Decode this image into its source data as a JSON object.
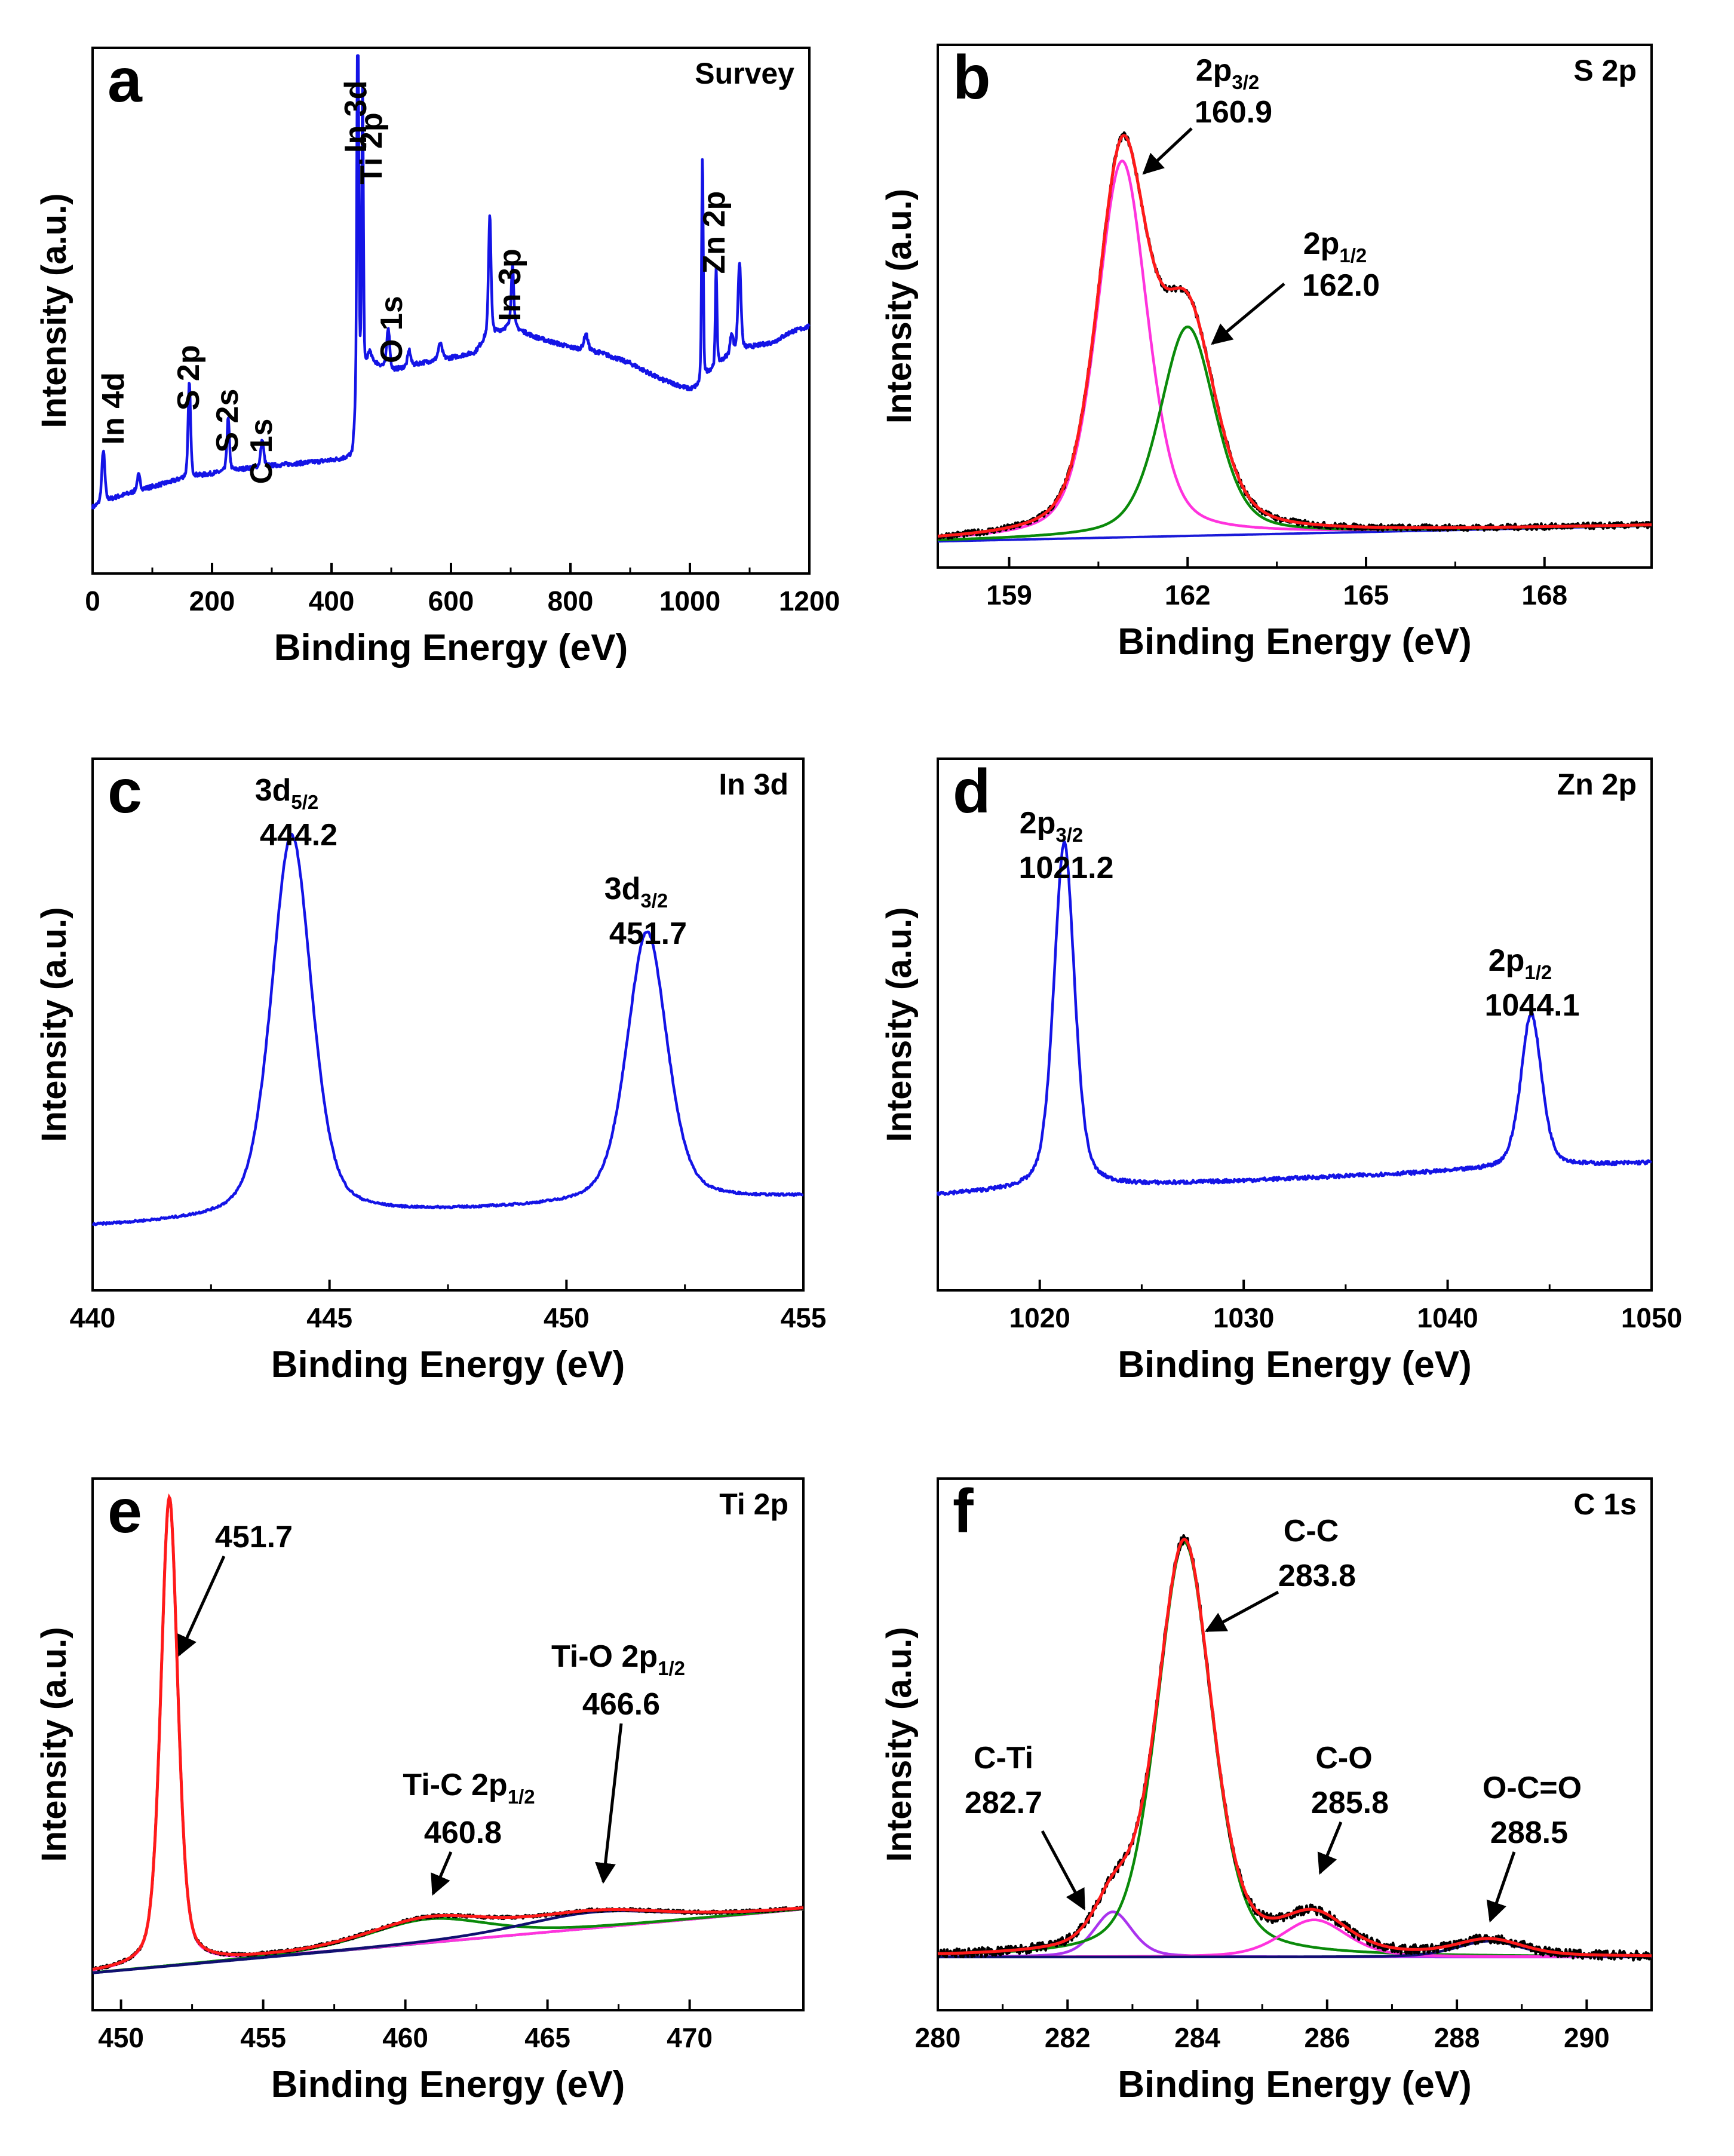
{
  "colors": {
    "measured_blue": "#1414e6",
    "raw": "#000000",
    "envelope": "#ff1a1a",
    "green": "#0a8a0a",
    "magenta": "#ff33dd",
    "violet": "#aa33ee",
    "navy": "#101070",
    "baseline_blue": "#1a1ad8"
  },
  "chart_data": [
    {
      "id": "a",
      "letter": "a",
      "type": "line",
      "title": "Survey",
      "xlabel": "Binding Energy (eV)",
      "ylabel": "Intensity (a.u.)",
      "xlim": [
        0,
        1200
      ],
      "ylim": [
        0,
        1
      ],
      "xticks": [
        0,
        200,
        400,
        600,
        800,
        1000,
        1200
      ],
      "series": [
        {
          "name": "Survey",
          "color": "measured_blue",
          "background": [
            [
              0,
              0.125
            ],
            [
              40,
              0.145
            ],
            [
              100,
              0.165
            ],
            [
              150,
              0.18
            ],
            [
              200,
              0.19
            ],
            [
              260,
              0.2
            ],
            [
              300,
              0.205
            ],
            [
              350,
              0.21
            ],
            [
              400,
              0.215
            ],
            [
              435,
              0.22
            ],
            [
              445,
              0.35
            ],
            [
              455,
              0.37
            ],
            [
              470,
              0.4
            ],
            [
              500,
              0.385
            ],
            [
              550,
              0.4
            ],
            [
              600,
              0.41
            ],
            [
              640,
              0.42
            ],
            [
              660,
              0.45
            ],
            [
              700,
              0.47
            ],
            [
              740,
              0.45
            ],
            [
              800,
              0.43
            ],
            [
              850,
              0.42
            ],
            [
              900,
              0.4
            ],
            [
              950,
              0.37
            ],
            [
              1000,
              0.35
            ],
            [
              1015,
              0.355
            ],
            [
              1030,
              0.38
            ],
            [
              1060,
              0.41
            ],
            [
              1100,
              0.43
            ],
            [
              1140,
              0.44
            ],
            [
              1170,
              0.46
            ],
            [
              1200,
              0.47
            ]
          ],
          "peaks": [
            [
              18,
              0.1,
              3
            ],
            [
              77,
              0.03,
              3
            ],
            [
              162,
              0.18,
              2.5
            ],
            [
              227,
              0.1,
              2.5
            ],
            [
              284,
              0.05,
              3
            ],
            [
              444,
              0.95,
              1.6
            ],
            [
              452,
              0.55,
              1.6
            ],
            [
              463,
              0.03,
              4
            ],
            [
              495,
              0.08,
              3
            ],
            [
              530,
              0.03,
              3
            ],
            [
              582,
              0.03,
              4
            ],
            [
              665,
              0.23,
              2.5
            ],
            [
              703,
              0.12,
              2.5
            ],
            [
              826,
              0.03,
              4
            ],
            [
              1021,
              0.43,
              1.6
            ],
            [
              1044,
              0.19,
              1.6
            ],
            [
              1070,
              0.04,
              3
            ],
            [
              1083,
              0.17,
              3
            ]
          ]
        }
      ],
      "annotations": [
        "In 4d",
        "S 2p",
        "S 2s",
        "C 1s",
        "In 3d",
        "Ti 2p",
        "O 1s",
        "In 3p",
        "Zn 2p"
      ]
    },
    {
      "id": "b",
      "letter": "b",
      "type": "line",
      "title": "S 2p",
      "xlabel": "Binding Energy (eV)",
      "ylabel": "Intensity (a.u.)",
      "xlim": [
        157.8,
        169.8
      ],
      "ylim": [
        0,
        1
      ],
      "xticks": [
        159,
        162,
        165,
        168
      ],
      "background": {
        "from": [
          157.8,
          0.05
        ],
        "to": [
          169.8,
          0.08
        ]
      },
      "components": [
        {
          "name": "2p3/2",
          "center": 160.9,
          "height": 0.72,
          "width": 0.5,
          "color": "magenta"
        },
        {
          "name": "2p1/2",
          "center": 162.0,
          "height": 0.4,
          "width": 0.55,
          "color": "green"
        }
      ],
      "annotations": [
        {
          "main": "2p",
          "sub": "3/2",
          "value": "160.9"
        },
        {
          "main": "2p",
          "sub": "1/2",
          "value": "162.0"
        }
      ]
    },
    {
      "id": "c",
      "letter": "c",
      "type": "line",
      "title": "In 3d",
      "xlabel": "Binding Energy (eV)",
      "ylabel": "Intensity (a.u.)",
      "xlim": [
        440,
        455
      ],
      "ylim": [
        0,
        1
      ],
      "xticks": [
        440,
        445,
        450,
        455
      ],
      "background": {
        "from": [
          440,
          0.12
        ],
        "to": [
          455,
          0.175
        ]
      },
      "components": [
        {
          "name": "3d5/2",
          "center": 444.2,
          "height": 0.72,
          "width": 0.5,
          "color": "measured_blue"
        },
        {
          "name": "3d3/2",
          "center": 451.7,
          "height": 0.51,
          "width": 0.5,
          "color": "measured_blue"
        }
      ],
      "annotations": [
        {
          "main": "3d",
          "sub": "5/2",
          "value": "444.2"
        },
        {
          "main": "3d",
          "sub": "3/2",
          "value": "451.7"
        }
      ]
    },
    {
      "id": "d",
      "letter": "d",
      "type": "line",
      "title": "Zn 2p",
      "xlabel": "Binding Energy (eV)",
      "ylabel": "Intensity (a.u.)",
      "xlim": [
        1015,
        1050
      ],
      "ylim": [
        0,
        1
      ],
      "xticks": [
        1020,
        1030,
        1040,
        1050
      ],
      "background": {
        "from": [
          1015,
          0.18
        ],
        "to": [
          1050,
          0.24
        ]
      },
      "components": [
        {
          "name": "2p3/2",
          "center": 1021.2,
          "height": 0.65,
          "width": 0.6,
          "color": "measured_blue"
        },
        {
          "name": "2p1/2",
          "center": 1044.1,
          "height": 0.29,
          "width": 0.6,
          "color": "measured_blue"
        }
      ],
      "annotations": [
        {
          "main": "2p",
          "sub": "3/2",
          "value": "1021.2"
        },
        {
          "main": "2p",
          "sub": "1/2",
          "value": "1044.1"
        }
      ]
    },
    {
      "id": "e",
      "letter": "e",
      "type": "line",
      "title": "Ti 2p",
      "xlabel": "Binding Energy (eV)",
      "ylabel": "Intensity (a.u.)",
      "xlim": [
        449,
        474
      ],
      "ylim": [
        0,
        1
      ],
      "xticks": [
        450,
        455,
        460,
        465,
        470
      ],
      "background": {
        "from": [
          449,
          0.07
        ],
        "to": [
          474,
          0.19
        ]
      },
      "components": [
        {
          "name": "451.7",
          "center": 451.7,
          "height": 0.88,
          "width": 0.35,
          "color": "magenta"
        },
        {
          "name": "Ti-C 2p1/2",
          "center": 460.8,
          "height": 0.045,
          "width": 2.5,
          "color": "green"
        },
        {
          "name": "Ti-O 2p1/2",
          "center": 466.6,
          "height": 0.03,
          "width": 3.0,
          "color": "navy"
        }
      ],
      "annotations": [
        {
          "main": "451.7",
          "sub": "",
          "value": ""
        },
        {
          "main": "Ti-C 2p",
          "sub": "1/2",
          "value": "460.8"
        },
        {
          "main": "Ti-O 2p",
          "sub": "1/2",
          "value": "466.6"
        }
      ]
    },
    {
      "id": "f",
      "letter": "f",
      "type": "line",
      "title": "C 1s",
      "xlabel": "Binding Energy (eV)",
      "ylabel": "Intensity (a.u.)",
      "xlim": [
        280,
        291
      ],
      "ylim": [
        0,
        1
      ],
      "xticks": [
        280,
        282,
        284,
        286,
        288,
        290
      ],
      "background": {
        "from": [
          280,
          0.1
        ],
        "to": [
          291,
          0.1
        ]
      },
      "components": [
        {
          "name": "C-Ti",
          "center": 282.7,
          "height": 0.085,
          "width": 0.35,
          "color": "violet"
        },
        {
          "name": "C-C",
          "center": 283.8,
          "height": 0.78,
          "width": 0.5,
          "color": "green"
        },
        {
          "name": "C-O",
          "center": 285.8,
          "height": 0.07,
          "width": 0.6,
          "color": "magenta"
        },
        {
          "name": "O-C=O",
          "center": 288.5,
          "height": 0.03,
          "width": 0.6,
          "color": "navy"
        }
      ],
      "annotations": [
        {
          "main": "C-Ti",
          "sub": "",
          "value": "282.7"
        },
        {
          "main": "C-C",
          "sub": "",
          "value": "283.8"
        },
        {
          "main": "C-O",
          "sub": "",
          "value": "285.8"
        },
        {
          "main": "O-C=O",
          "sub": "",
          "value": "288.5"
        }
      ]
    }
  ]
}
